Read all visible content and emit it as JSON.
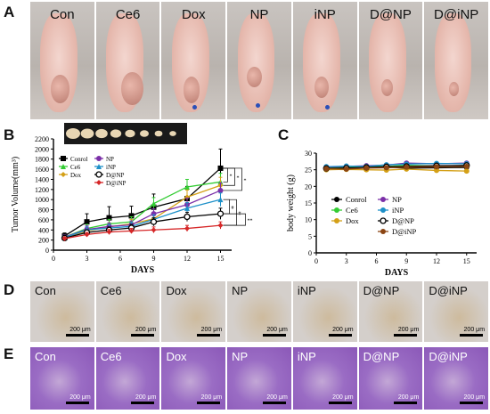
{
  "panels": [
    "A",
    "B",
    "C",
    "D",
    "E"
  ],
  "groups": [
    "Con",
    "Ce6",
    "Dox",
    "NP",
    "iNP",
    "D@NP",
    "D@iNP"
  ],
  "scale_label": "200 μm",
  "colors": {
    "Control": "#000000",
    "Ce6": "#33cc33",
    "Dox": "#d4a017",
    "NP": "#7b2fa8",
    "iNP": "#1e90c8",
    "D@NP": "#000000",
    "D@iNP": "#d62728",
    "D@iNP_c": "#8b4513"
  },
  "chart_data": [
    {
      "type": "line",
      "panel": "B",
      "xlabel": "DAYS",
      "ylabel": "Tumor Volume(mm³)",
      "x": [
        1,
        3,
        5,
        7,
        9,
        12,
        15
      ],
      "xticks": [
        0,
        3,
        6,
        9,
        12,
        15
      ],
      "ylim": [
        0,
        2200
      ],
      "yticks": [
        0,
        200,
        400,
        600,
        800,
        1000,
        1200,
        1400,
        1600,
        1800,
        2000,
        2200
      ],
      "series": [
        {
          "name": "Conrol",
          "color": "#000000",
          "marker": "square",
          "values": [
            280,
            560,
            640,
            680,
            850,
            1020,
            1620
          ],
          "errors": [
            60,
            160,
            220,
            190,
            260,
            240,
            380
          ]
        },
        {
          "name": "Ce6",
          "color": "#33cc33",
          "marker": "triangle",
          "values": [
            260,
            430,
            520,
            560,
            920,
            1250,
            1350
          ],
          "errors": [
            40,
            80,
            90,
            100,
            120,
            150,
            170
          ]
        },
        {
          "name": "Dox",
          "color": "#d4a017",
          "marker": "diamond",
          "values": [
            250,
            380,
            460,
            520,
            620,
            1050,
            1280
          ],
          "errors": [
            40,
            70,
            80,
            90,
            110,
            140,
            160
          ]
        },
        {
          "name": "NP",
          "color": "#7b2fa8",
          "marker": "circle",
          "values": [
            260,
            410,
            470,
            500,
            720,
            900,
            1180
          ],
          "errors": [
            40,
            70,
            70,
            80,
            100,
            130,
            150
          ]
        },
        {
          "name": "iNP",
          "color": "#1e90c8",
          "marker": "triangle",
          "values": [
            250,
            400,
            440,
            470,
            610,
            830,
            1000
          ],
          "errors": [
            40,
            60,
            70,
            80,
            90,
            110,
            130
          ]
        },
        {
          "name": "D@NP",
          "color": "#000000",
          "marker": "open-circle",
          "values": [
            240,
            350,
            400,
            440,
            560,
            660,
            720
          ],
          "errors": [
            30,
            50,
            60,
            70,
            80,
            90,
            110
          ]
        },
        {
          "name": "D@iNP",
          "color": "#d62728",
          "marker": "diamond",
          "values": [
            230,
            310,
            360,
            380,
            400,
            430,
            490
          ],
          "errors": [
            30,
            40,
            50,
            50,
            60,
            60,
            70
          ]
        }
      ],
      "significance": [
        "*",
        "*",
        "*",
        "#",
        "#",
        "**",
        "**",
        "#",
        "*",
        "**"
      ]
    },
    {
      "type": "line",
      "panel": "C",
      "xlabel": "DAYS",
      "ylabel": "body weight (g)",
      "x": [
        1,
        3,
        5,
        7,
        9,
        12,
        15
      ],
      "xticks": [
        0,
        3,
        6,
        9,
        12,
        15
      ],
      "ylim": [
        0,
        30
      ],
      "yticks": [
        0,
        5,
        10,
        15,
        20,
        25,
        30
      ],
      "series": [
        {
          "name": "Conrol",
          "color": "#000000",
          "marker": "circle",
          "values": [
            25.2,
            25.4,
            25.6,
            25.8,
            25.5,
            25.6,
            25.7
          ]
        },
        {
          "name": "Ce6",
          "color": "#33cc33",
          "marker": "circle",
          "values": [
            25.6,
            25.8,
            25.9,
            26.0,
            26.3,
            26.1,
            26.2
          ]
        },
        {
          "name": "Dox",
          "color": "#d4a017",
          "marker": "circle",
          "values": [
            25.0,
            25.1,
            25.0,
            24.9,
            25.2,
            24.8,
            24.6
          ]
        },
        {
          "name": "NP",
          "color": "#7b2fa8",
          "marker": "circle",
          "values": [
            25.8,
            26.0,
            26.2,
            26.4,
            27.0,
            26.8,
            27.0
          ]
        },
        {
          "name": "iNP",
          "color": "#1e90c8",
          "marker": "circle",
          "values": [
            25.9,
            26.1,
            26.0,
            26.5,
            26.7,
            26.9,
            26.8
          ]
        },
        {
          "name": "D@NP",
          "color": "#000000",
          "marker": "open-circle",
          "values": [
            25.4,
            25.5,
            25.7,
            25.9,
            26.0,
            26.2,
            26.3
          ]
        },
        {
          "name": "D@iNP",
          "color": "#8b4513",
          "marker": "circle",
          "values": [
            25.3,
            25.2,
            25.5,
            25.6,
            25.8,
            25.9,
            26.0
          ]
        }
      ]
    }
  ]
}
